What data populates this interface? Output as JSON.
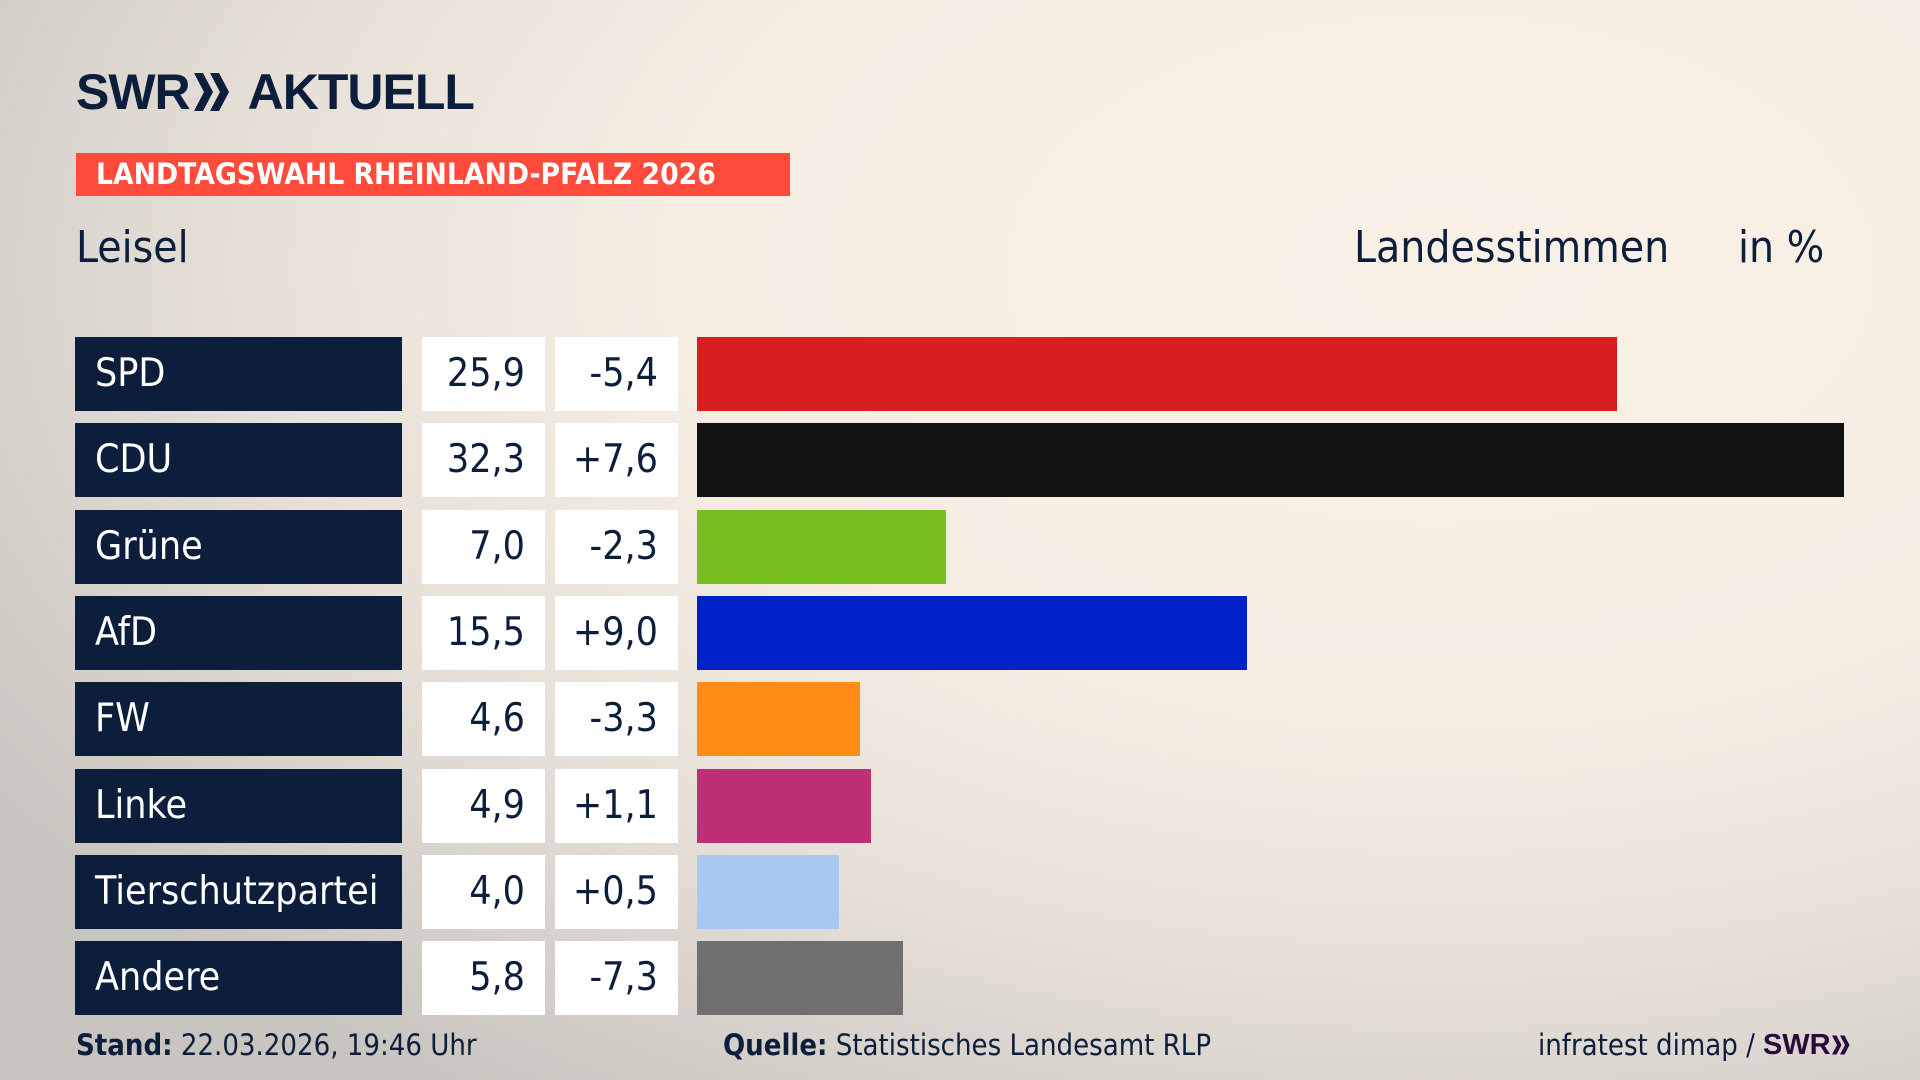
{
  "header": {
    "brand": "SWR",
    "brand_suffix": "AKTUELL",
    "banner": "LANDTAGSWAHL RHEINLAND-PFALZ 2026",
    "place": "Leisel",
    "measure": "Landesstimmen",
    "unit": "in %"
  },
  "chart_data": {
    "type": "bar",
    "orientation": "horizontal",
    "categories": [
      "SPD",
      "CDU",
      "Grüne",
      "AfD",
      "FW",
      "Linke",
      "Tierschutzpartei",
      "Andere"
    ],
    "values": [
      25.9,
      32.3,
      7.0,
      15.5,
      4.6,
      4.9,
      4.0,
      5.8
    ],
    "value_labels": [
      "25,9",
      "32,3",
      "7,0",
      "15,5",
      "4,6",
      "4,9",
      "4,0",
      "5,8"
    ],
    "diff_labels": [
      "-5,4",
      "+7,6",
      "-2,3",
      "+9,0",
      "-3,3",
      "+1,1",
      "+0,5",
      "-7,3"
    ],
    "colors": [
      "#d71f1f",
      "#121212",
      "#78be1e",
      "#0021c8",
      "#ff8c14",
      "#be3075",
      "#a8c8f0",
      "#707070"
    ],
    "xlim": [
      0,
      32.3
    ],
    "grid": false,
    "ylabel": "Landesstimmen",
    "unit": "in %"
  },
  "footer": {
    "stand_label": "Stand:",
    "stand_value": "22.03.2026, 19:46 Uhr",
    "source_label": "Quelle:",
    "source_value": "Statistisches Landesamt RLP",
    "credit": "infratest dimap /",
    "credit_brand": "SWR"
  },
  "colors": {
    "navy": "#0c1e3c",
    "banner": "#ff4b3c"
  }
}
